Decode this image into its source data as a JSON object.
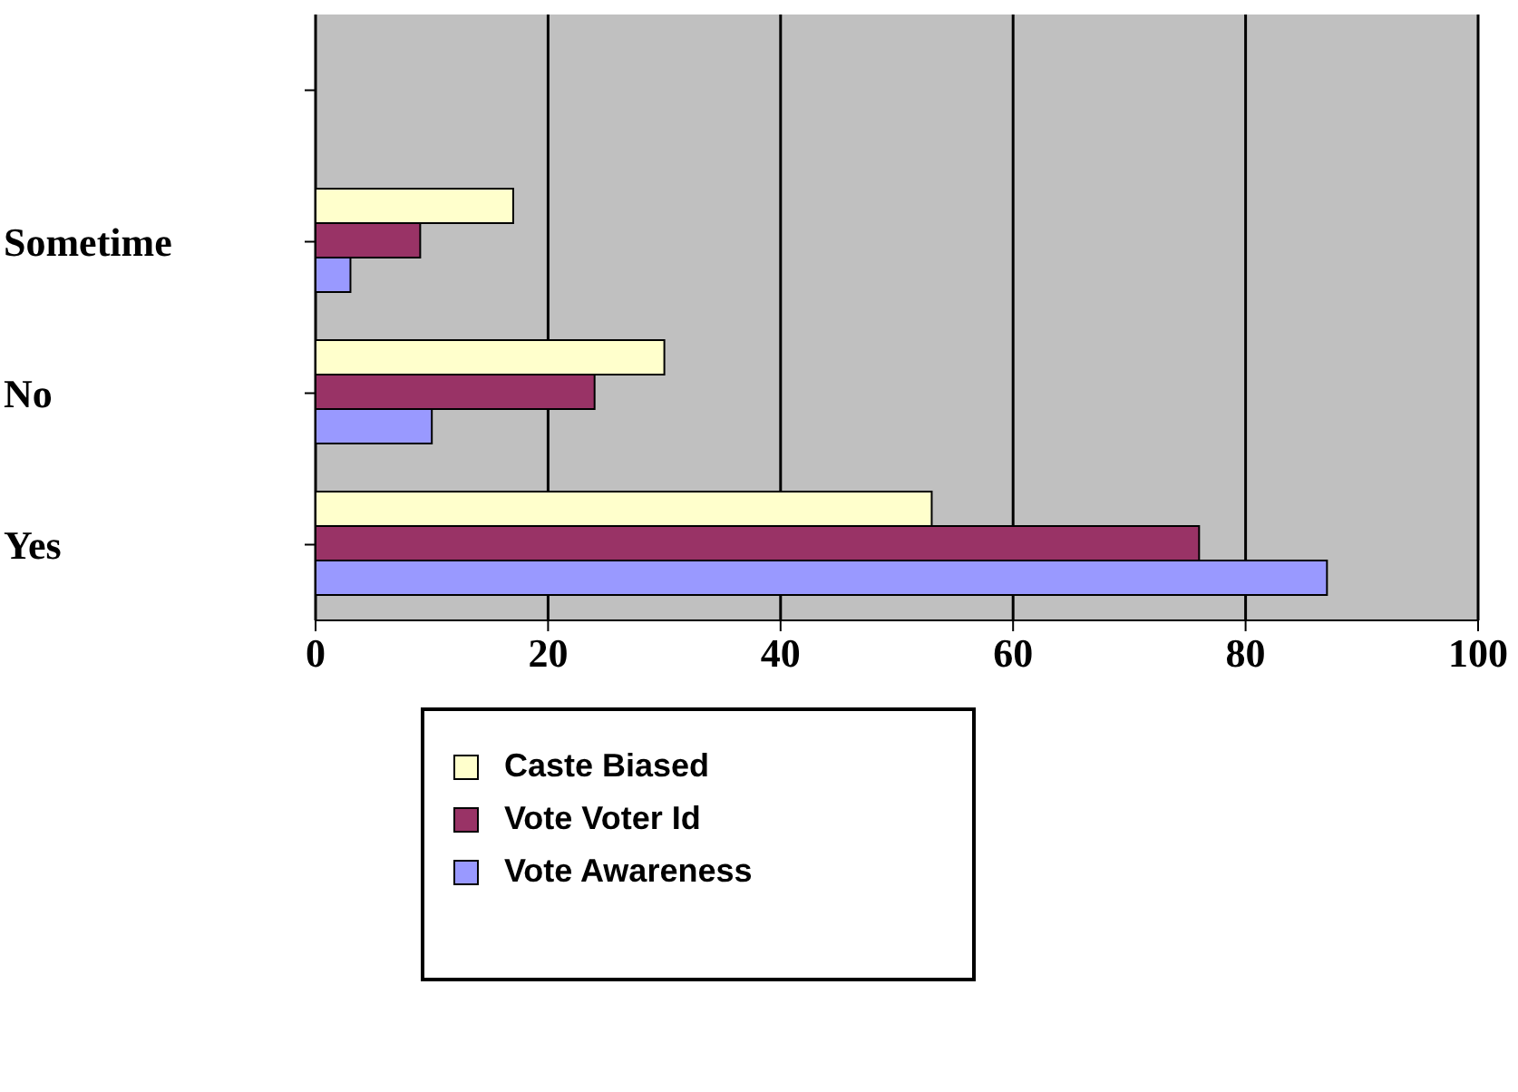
{
  "chart_data": {
    "type": "bar",
    "orientation": "horizontal",
    "categories": [
      null,
      "Sometime",
      "No",
      "Yes"
    ],
    "series": [
      {
        "name": "Caste Biased",
        "color": "#ffffcc",
        "values": [
          null,
          17,
          30,
          53
        ]
      },
      {
        "name": "Vote Voter Id",
        "color": "#993366",
        "values": [
          null,
          9,
          24,
          76
        ]
      },
      {
        "name": "Vote Awareness",
        "color": "#9999ff",
        "values": [
          null,
          3,
          10,
          87
        ]
      }
    ],
    "xlim": [
      0,
      100
    ],
    "xticks": [
      0,
      20,
      40,
      60,
      80,
      100
    ],
    "grid": "x",
    "legend": "bottom"
  }
}
